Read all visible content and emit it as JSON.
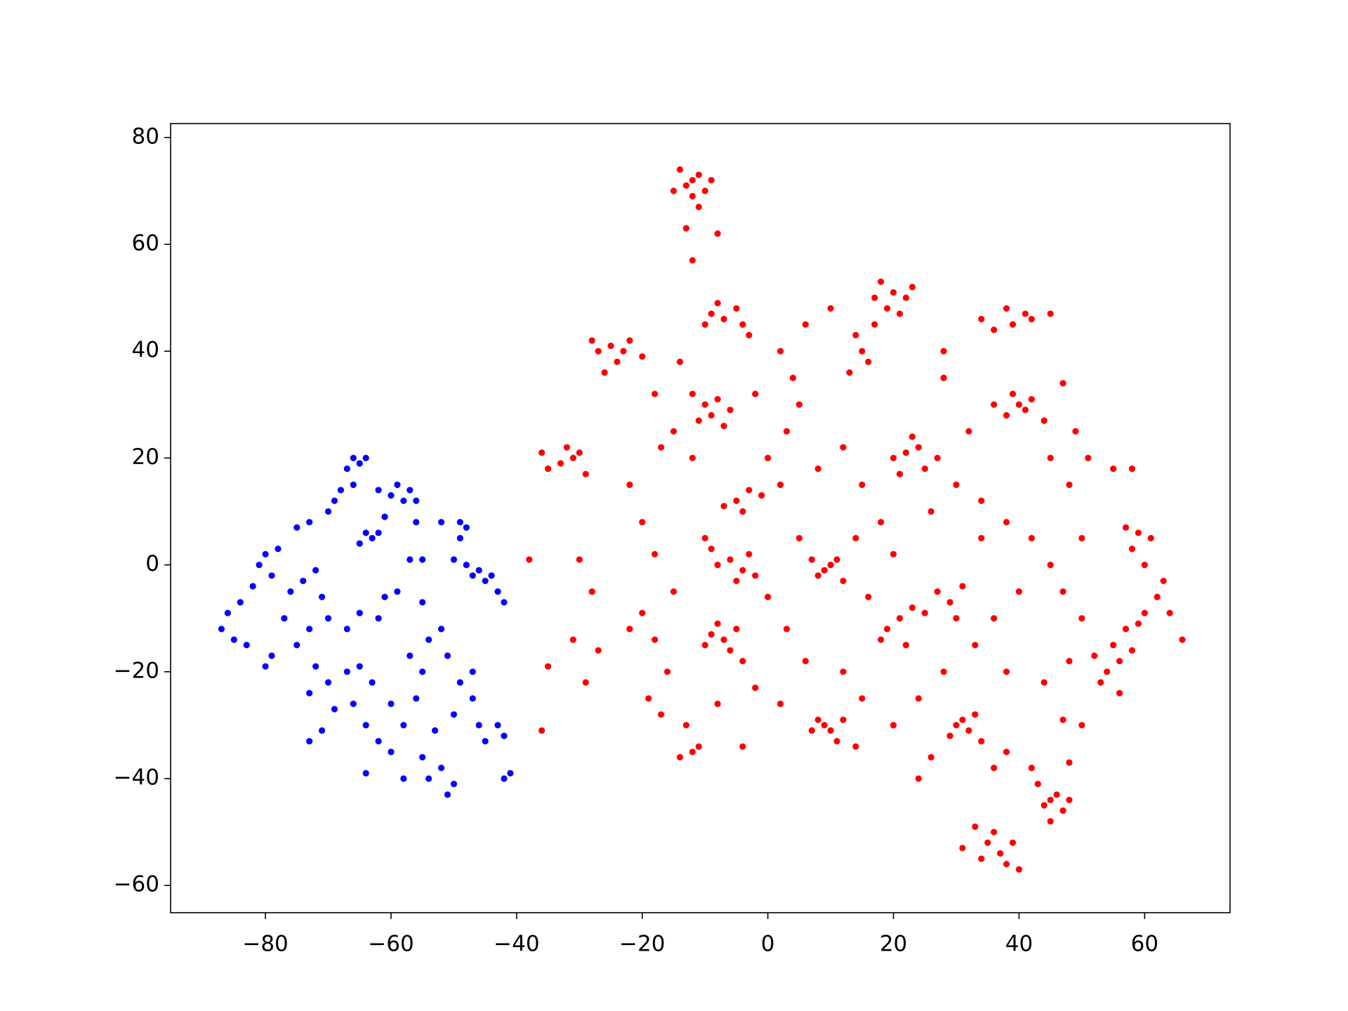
{
  "chart_data": {
    "type": "scatter",
    "xlim": [
      -95.1,
      73.6
    ],
    "ylim": [
      -65.1,
      82.6
    ],
    "xticks": [
      {
        "value": -80,
        "label": "−80"
      },
      {
        "value": -60,
        "label": "−60"
      },
      {
        "value": -40,
        "label": "−40"
      },
      {
        "value": -20,
        "label": "−20"
      },
      0,
      20,
      40,
      60
    ],
    "yticks": [
      {
        "value": -60,
        "label": "−60"
      },
      {
        "value": -40,
        "label": "−40"
      },
      {
        "value": -20,
        "label": "−20"
      },
      0,
      20,
      40,
      60,
      80
    ],
    "grid": false,
    "series": [
      {
        "color": "#0000ff",
        "x": [
          -66,
          -65,
          -64,
          -67,
          -66,
          -68,
          -69,
          -70,
          -62,
          -60,
          -58,
          -57,
          -59,
          -56,
          -64,
          -63,
          -65,
          -62,
          -61,
          -56,
          -52,
          -49,
          -48,
          -49,
          -50,
          -48,
          -46,
          -45,
          -44,
          -47,
          -43,
          -42,
          -55,
          -57,
          -55,
          -59,
          -61,
          -62,
          -73,
          -75,
          -78,
          -80,
          -81,
          -79,
          -82,
          -84,
          -86,
          -87,
          -85,
          -83,
          -80,
          -79,
          -77,
          -76,
          -74,
          -72,
          -71,
          -70,
          -73,
          -75,
          -72,
          -70,
          -73,
          -69,
          -71,
          -73,
          -67,
          -65,
          -63,
          -66,
          -64,
          -62,
          -60,
          -58,
          -56,
          -55,
          -57,
          -54,
          -52,
          -51,
          -49,
          -50,
          -53,
          -55,
          -52,
          -50,
          -51,
          -54,
          -58,
          -64,
          -47,
          -46,
          -45,
          -43,
          -42,
          -41,
          -42,
          -47,
          -60,
          -67,
          -65
        ],
        "y": [
          20,
          19,
          20,
          18,
          15,
          14,
          12,
          10,
          14,
          13,
          12,
          14,
          15,
          12,
          6,
          5,
          4,
          6,
          9,
          8,
          8,
          8,
          7,
          5,
          1,
          0,
          -1,
          -3,
          -2,
          -2,
          -5,
          -7,
          1,
          1,
          -7,
          -5,
          -6,
          -10,
          8,
          7,
          3,
          2,
          0,
          -2,
          -4,
          -7,
          -9,
          -12,
          -14,
          -15,
          -19,
          -17,
          -10,
          -5,
          -3,
          -1,
          -6,
          -10,
          -12,
          -15,
          -19,
          -22,
          -24,
          -27,
          -31,
          -33,
          -20,
          -19,
          -22,
          -26,
          -30,
          -33,
          -35,
          -30,
          -25,
          -20,
          -17,
          -14,
          -12,
          -17,
          -22,
          -28,
          -31,
          -36,
          -38,
          -41,
          -43,
          -40,
          -40,
          -39,
          -25,
          -30,
          -33,
          -30,
          -32,
          -39,
          -40,
          -20,
          -26,
          -12,
          -9
        ]
      },
      {
        "color": "#ff0000",
        "x": [
          -12,
          -13,
          -11,
          -14,
          -10,
          -12,
          -15,
          -9,
          -11,
          -13,
          -12,
          -8,
          -31,
          -33,
          -30,
          -35,
          -32,
          -29,
          -36,
          -25,
          -27,
          -23,
          -28,
          -24,
          -26,
          -22,
          -20,
          -9,
          -7,
          -5,
          -10,
          -8,
          -4,
          -3,
          -10,
          -9,
          -8,
          -7,
          -11,
          -12,
          -6,
          20,
          22,
          18,
          19,
          23,
          21,
          17,
          41,
          39,
          42,
          38,
          36,
          34,
          45,
          40,
          41,
          42,
          38,
          39,
          36,
          44,
          22,
          24,
          20,
          25,
          23,
          27,
          21,
          -5,
          -3,
          -7,
          -4,
          -1,
          -6,
          -4,
          -8,
          -3,
          -2,
          -9,
          -5,
          10,
          9,
          11,
          8,
          12,
          7,
          -7,
          -9,
          -6,
          -8,
          -5,
          -10,
          -4,
          21,
          19,
          23,
          18,
          22,
          25,
          27,
          29,
          31,
          55,
          56,
          57,
          54,
          58,
          53,
          59,
          56,
          52,
          60,
          62,
          63,
          61,
          59,
          57,
          58,
          60,
          30,
          32,
          31,
          29,
          33,
          34,
          9,
          10,
          8,
          11,
          7,
          12,
          -13,
          -12,
          -11,
          -14,
          -17,
          -19,
          45,
          46,
          44,
          47,
          43,
          48,
          45,
          35,
          37,
          36,
          38,
          34,
          39,
          33,
          40,
          31,
          15,
          14,
          16,
          13,
          17,
          5,
          3,
          0,
          2,
          8,
          12,
          15,
          18,
          14,
          5,
          0,
          3,
          6,
          12,
          15,
          16,
          20,
          26,
          30,
          34,
          38,
          42,
          45,
          40,
          36,
          33,
          38,
          44,
          48,
          50,
          47,
          50,
          48,
          51,
          45,
          34,
          28,
          24,
          20,
          14,
          2,
          -2,
          -15,
          -18,
          -20,
          -22,
          -17,
          -15,
          -18,
          -14,
          -12,
          -10,
          2,
          6,
          10,
          4,
          -2,
          28,
          28,
          32,
          30,
          26,
          36,
          38,
          42,
          48,
          -35,
          -31,
          -27,
          -29,
          -36,
          -38,
          -30,
          -28,
          -20,
          -22,
          -18,
          66,
          64,
          50,
          47,
          49,
          55,
          58,
          47,
          24,
          -4,
          -8,
          -16
        ],
        "y": [
          72,
          71,
          73,
          74,
          70,
          69,
          70,
          72,
          67,
          63,
          57,
          62,
          20,
          19,
          21,
          18,
          22,
          17,
          21,
          41,
          40,
          40,
          42,
          38,
          36,
          42,
          39,
          47,
          46,
          48,
          45,
          49,
          45,
          43,
          30,
          28,
          31,
          26,
          27,
          32,
          29,
          51,
          50,
          53,
          48,
          52,
          47,
          50,
          47,
          45,
          46,
          48,
          44,
          46,
          47,
          30,
          29,
          31,
          28,
          32,
          30,
          27,
          21,
          22,
          20,
          18,
          24,
          20,
          17,
          12,
          14,
          11,
          10,
          13,
          1,
          -1,
          0,
          2,
          -2,
          3,
          -3,
          0,
          -1,
          1,
          -2,
          -3,
          1,
          -14,
          -13,
          -16,
          -11,
          -12,
          -15,
          -18,
          -10,
          -12,
          -8,
          -14,
          -15,
          -9,
          -5,
          -7,
          -4,
          -15,
          -18,
          -12,
          -20,
          -16,
          -22,
          -11,
          -24,
          -17,
          -9,
          -6,
          -3,
          5,
          6,
          7,
          3,
          0,
          -30,
          -31,
          -29,
          -32,
          -28,
          -33,
          -30,
          -31,
          -29,
          -33,
          -31,
          -29,
          -30,
          -35,
          -34,
          -36,
          -28,
          -25,
          -44,
          -43,
          -45,
          -46,
          -41,
          -44,
          -48,
          -52,
          -54,
          -50,
          -56,
          -55,
          -52,
          -49,
          -57,
          -53,
          40,
          43,
          38,
          36,
          45,
          30,
          25,
          20,
          15,
          18,
          22,
          15,
          8,
          5,
          5,
          -6,
          -12,
          -18,
          -20,
          -25,
          -6,
          2,
          10,
          15,
          12,
          8,
          5,
          0,
          -5,
          -10,
          -15,
          -20,
          -22,
          -18,
          -10,
          -5,
          5,
          15,
          20,
          20,
          5,
          -20,
          -25,
          -30,
          -34,
          -26,
          -23,
          -5,
          2,
          8,
          15,
          22,
          25,
          32,
          38,
          20,
          5,
          40,
          45,
          48,
          35,
          32,
          35,
          40,
          25,
          -10,
          -36,
          -38,
          -35,
          -38,
          -37,
          -19,
          -14,
          -16,
          -22,
          -31,
          1,
          1,
          -5,
          -9,
          -12,
          -14,
          -14,
          -9,
          -30,
          -29,
          25,
          18,
          18,
          34,
          -40,
          -34,
          -26,
          -20
        ]
      }
    ]
  }
}
